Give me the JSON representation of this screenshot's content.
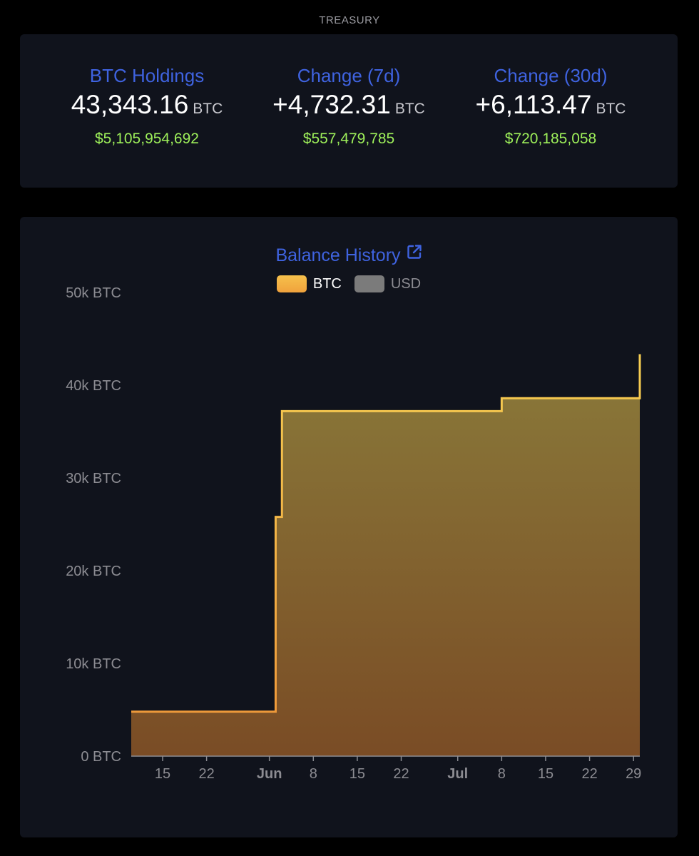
{
  "section_title": "TREASURY",
  "stats": [
    {
      "label": "BTC Holdings",
      "value": "43,343.16",
      "unit": "BTC",
      "usd": "$5,105,954,692"
    },
    {
      "label": "Change (7d)",
      "value": "+4,732.31",
      "unit": "BTC",
      "usd": "$557,479,785"
    },
    {
      "label": "Change (30d)",
      "value": "+6,113.47",
      "unit": "BTC",
      "usd": "$720,185,058"
    }
  ],
  "colors": {
    "accent": "#3f63e0",
    "positive": "#9ef05a",
    "btc_line": "#f5c24a",
    "usd_swatch": "#7b7b7b"
  },
  "chart_icon": "external-link-icon",
  "chart_data": {
    "type": "area",
    "title": "Balance History",
    "legend": [
      {
        "name": "BTC",
        "active": true
      },
      {
        "name": "USD",
        "active": false
      }
    ],
    "yticks": [
      "0 BTC",
      "10k BTC",
      "20k BTC",
      "30k BTC",
      "40k BTC",
      "50k BTC"
    ],
    "ylim": [
      0,
      50000
    ],
    "xlim": [
      "2025-05-10",
      "2025-07-30"
    ],
    "xticks": [
      {
        "date": "2025-05-15",
        "label": "15",
        "major": false
      },
      {
        "date": "2025-05-22",
        "label": "22",
        "major": false
      },
      {
        "date": "2025-06-01",
        "label": "Jun",
        "major": true
      },
      {
        "date": "2025-06-08",
        "label": "8",
        "major": false
      },
      {
        "date": "2025-06-15",
        "label": "15",
        "major": false
      },
      {
        "date": "2025-06-22",
        "label": "22",
        "major": false
      },
      {
        "date": "2025-07-01",
        "label": "Jul",
        "major": true
      },
      {
        "date": "2025-07-08",
        "label": "8",
        "major": false
      },
      {
        "date": "2025-07-15",
        "label": "15",
        "major": false
      },
      {
        "date": "2025-07-22",
        "label": "22",
        "major": false
      },
      {
        "date": "2025-07-29",
        "label": "29",
        "major": false
      }
    ],
    "series": [
      {
        "name": "BTC",
        "step": true,
        "points": [
          {
            "x": "2025-05-10",
            "y": 4800
          },
          {
            "x": "2025-06-02",
            "y": 25800
          },
          {
            "x": "2025-06-03",
            "y": 37200
          },
          {
            "x": "2025-07-08",
            "y": 38600
          },
          {
            "x": "2025-07-30",
            "y": 43343
          }
        ]
      }
    ]
  }
}
